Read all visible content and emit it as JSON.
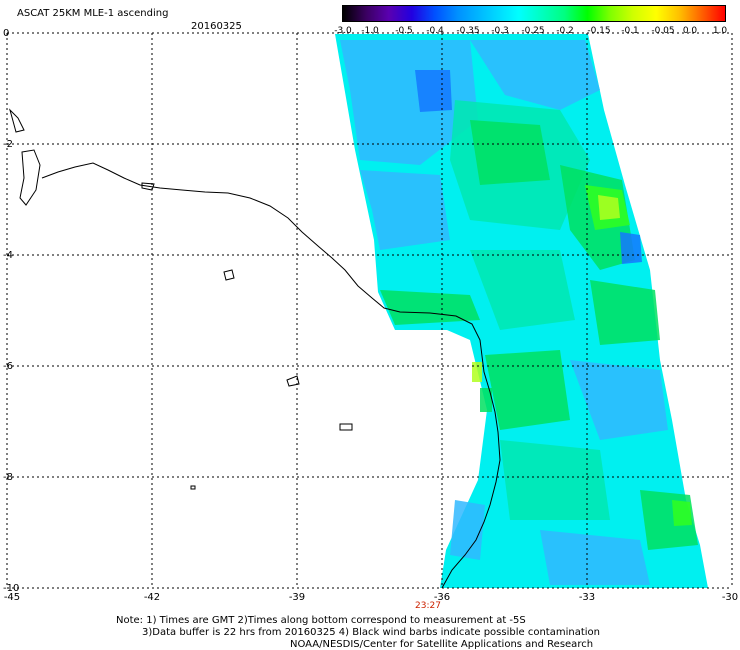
{
  "header": {
    "title": "ASCAT 25KM MLE-1 ascending",
    "date": "20160325"
  },
  "colorbar": {
    "labels": [
      "-3.0",
      "-1.0",
      "-0.5",
      "-0.4",
      "-0.35",
      "-0.3",
      "-0.25",
      "-0.2",
      "-0.15",
      "-0.1",
      "-0.05",
      "0.0",
      "1.0"
    ],
    "colors": [
      "#000000",
      "#5a00b0",
      "#0050ff",
      "#00c8ff",
      "#00ffff",
      "#00ff80",
      "#00ff00",
      "#d0ff00",
      "#ffff00",
      "#ff6000",
      "#ff0000"
    ]
  },
  "map": {
    "lat_labels": [
      "0",
      "-2",
      "-4",
      "-6",
      "-8",
      "-10"
    ],
    "lon_labels": [
      "-45",
      "-42",
      "-39",
      "-36",
      "-33",
      "-30"
    ],
    "time_label": "23:27",
    "time_color": "#cc2200",
    "swath_palette": {
      "deep": "#1478ff",
      "blue": "#30b8ff",
      "cyan": "#00f0f0",
      "teal": "#00e8b0",
      "green": "#00e060",
      "bright": "#30ff20",
      "lime": "#b0ff20"
    }
  },
  "notes": {
    "line1": "Note: 1) Times are GMT 2)Times along bottom correspond to measurement at -5S",
    "line2": "3)Data buffer is 22 hrs from 20160325 4) Black wind barbs indicate possible contamination",
    "line3": "NOAA/NESDIS/Center for Satellite Applications and Research"
  }
}
